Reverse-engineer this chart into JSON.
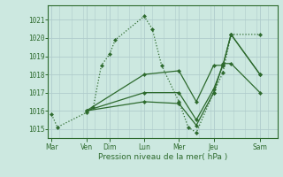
{
  "title": "Pression niveau de la mer( hPa )",
  "bg_color": "#cce8e0",
  "grid_color": "#b0cccc",
  "line_color": "#2d6a2d",
  "ylim": [
    1014.5,
    1021.8
  ],
  "yticks": [
    1015,
    1016,
    1017,
    1018,
    1019,
    1020,
    1021
  ],
  "day_labels": [
    "Mar",
    "Ven",
    "Dim",
    "Lun",
    "Mer",
    "Jeu",
    "Sam"
  ],
  "day_positions": [
    0,
    3,
    5,
    8,
    11,
    14,
    18
  ],
  "xlim": [
    -0.3,
    19.5
  ],
  "lines": [
    {
      "style": "dotted",
      "x": [
        0.0,
        0.5,
        3.0,
        3.6,
        4.3,
        5.0,
        5.5,
        8.0,
        8.7,
        9.5,
        11.0,
        11.8,
        12.5,
        14.0,
        14.8,
        15.5,
        18.0
      ],
      "y": [
        1015.8,
        1015.1,
        1015.9,
        1016.2,
        1018.5,
        1019.1,
        1019.9,
        1021.2,
        1020.5,
        1018.5,
        1016.5,
        1015.1,
        1014.8,
        1017.0,
        1018.1,
        1020.2,
        1020.2
      ]
    },
    {
      "style": "solid",
      "x": [
        3.0,
        8.0,
        11.0,
        12.5,
        14.0,
        14.8,
        15.5,
        18.0
      ],
      "y": [
        1016.0,
        1016.5,
        1016.4,
        1015.2,
        1017.0,
        1018.6,
        1018.6,
        1017.0
      ]
    },
    {
      "style": "solid",
      "x": [
        3.0,
        8.0,
        11.0,
        12.5,
        14.0,
        14.8,
        15.5,
        18.0
      ],
      "y": [
        1016.0,
        1017.0,
        1017.0,
        1015.5,
        1017.2,
        1018.5,
        1020.2,
        1018.0
      ]
    },
    {
      "style": "solid",
      "x": [
        3.0,
        8.0,
        11.0,
        12.5,
        14.0,
        14.8,
        15.5,
        18.0
      ],
      "y": [
        1016.0,
        1018.0,
        1018.2,
        1016.5,
        1018.5,
        1018.5,
        1020.2,
        1018.0
      ]
    }
  ]
}
